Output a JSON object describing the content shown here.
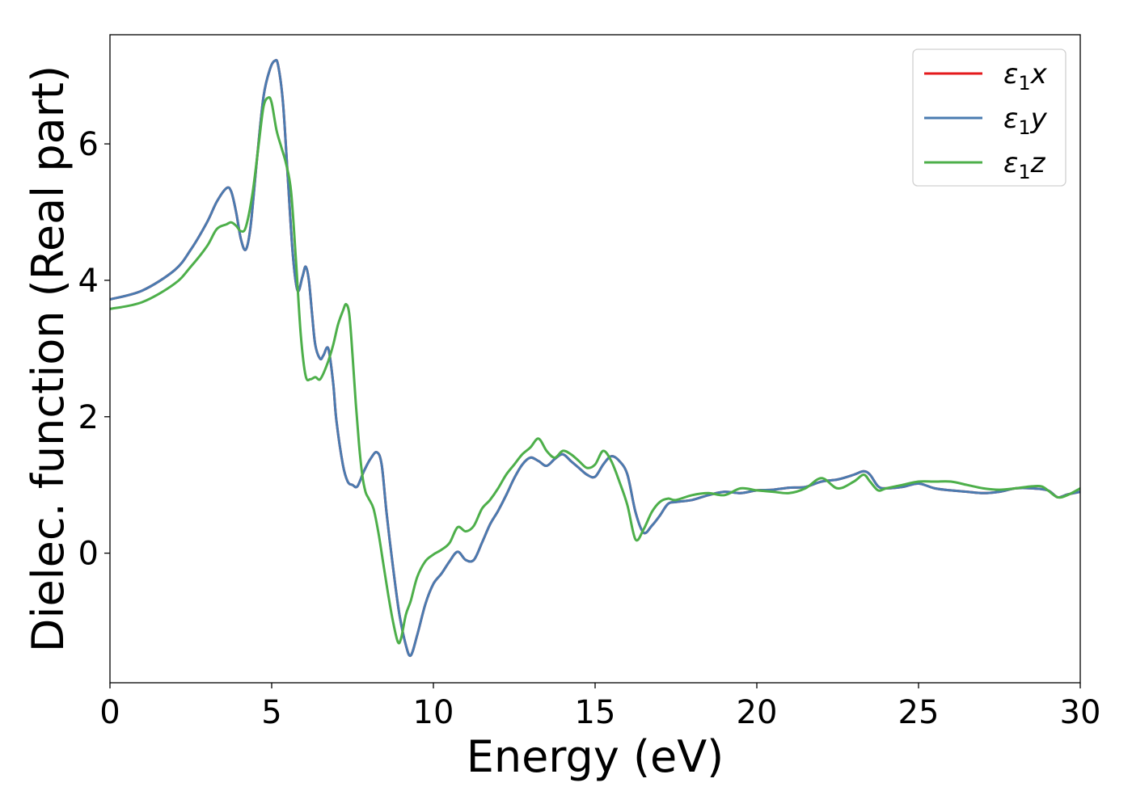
{
  "chart_data": {
    "type": "line",
    "xlabel": "Energy (eV)",
    "ylabel": "Dielec. function (Real part)",
    "xlim": [
      0,
      30
    ],
    "ylim": [
      -1.9,
      7.6
    ],
    "xticks": [
      0,
      5,
      10,
      15,
      20,
      25,
      30
    ],
    "yticks": [
      0,
      2,
      4,
      6
    ],
    "grid": false,
    "legend_position": "top-right",
    "series": [
      {
        "name": "ε1x",
        "label_base": "ε",
        "label_sub": "1",
        "label_tail": "x",
        "color": "#e41a1c",
        "x": [
          0,
          1,
          2,
          2.5,
          3,
          3.3,
          3.6,
          3.75,
          3.9,
          4.05,
          4.2,
          4.35,
          4.55,
          4.75,
          4.95,
          5.1,
          5.2,
          5.35,
          5.5,
          5.65,
          5.8,
          5.95,
          6.05,
          6.15,
          6.25,
          6.35,
          6.5,
          6.6,
          6.75,
          6.9,
          7.0,
          7.2,
          7.35,
          7.5,
          7.65,
          7.85,
          8.05,
          8.25,
          8.4,
          8.55,
          8.75,
          8.95,
          9.15,
          9.3,
          9.5,
          9.75,
          10.0,
          10.25,
          10.5,
          10.75,
          11.0,
          11.25,
          11.5,
          11.75,
          12.0,
          12.25,
          12.5,
          12.75,
          13.0,
          13.25,
          13.5,
          13.75,
          14.0,
          14.25,
          14.5,
          14.75,
          15.0,
          15.25,
          15.5,
          15.75,
          16.0,
          16.25,
          16.5,
          16.75,
          17.0,
          17.25,
          17.5,
          18.0,
          18.5,
          19.0,
          19.5,
          20.0,
          20.5,
          21.0,
          21.5,
          22.0,
          22.5,
          23.0,
          23.3,
          23.5,
          23.75,
          24.0,
          24.5,
          25.0,
          25.5,
          26.0,
          26.5,
          27.0,
          27.5,
          28.0,
          28.5,
          29.0,
          29.3,
          29.6,
          30.0
        ],
        "y": [
          3.72,
          3.85,
          4.15,
          4.45,
          4.85,
          5.15,
          5.35,
          5.3,
          5.0,
          4.6,
          4.45,
          4.8,
          5.8,
          6.7,
          7.1,
          7.22,
          7.15,
          6.6,
          5.5,
          4.4,
          3.85,
          4.05,
          4.2,
          4.0,
          3.5,
          3.05,
          2.85,
          2.9,
          3.0,
          2.5,
          1.95,
          1.3,
          1.05,
          1.0,
          0.98,
          1.2,
          1.38,
          1.48,
          1.3,
          0.6,
          -0.2,
          -0.9,
          -1.35,
          -1.5,
          -1.2,
          -0.75,
          -0.45,
          -0.3,
          -0.12,
          0.02,
          -0.1,
          -0.1,
          0.15,
          0.42,
          0.62,
          0.85,
          1.1,
          1.3,
          1.4,
          1.35,
          1.28,
          1.38,
          1.45,
          1.35,
          1.25,
          1.15,
          1.12,
          1.3,
          1.42,
          1.35,
          1.15,
          0.6,
          0.3,
          0.4,
          0.55,
          0.72,
          0.75,
          0.78,
          0.85,
          0.9,
          0.88,
          0.92,
          0.93,
          0.96,
          0.97,
          1.05,
          1.08,
          1.15,
          1.2,
          1.15,
          0.98,
          0.95,
          0.97,
          1.02,
          0.95,
          0.92,
          0.9,
          0.88,
          0.9,
          0.95,
          0.95,
          0.92,
          0.82,
          0.86,
          0.9
        ]
      },
      {
        "name": "ε1y",
        "label_base": "ε",
        "label_sub": "1",
        "label_tail": "y",
        "color": "#4a7bb0",
        "x": [
          0,
          1,
          2,
          2.5,
          3,
          3.3,
          3.6,
          3.75,
          3.9,
          4.05,
          4.2,
          4.35,
          4.55,
          4.75,
          4.95,
          5.1,
          5.2,
          5.35,
          5.5,
          5.65,
          5.8,
          5.95,
          6.05,
          6.15,
          6.25,
          6.35,
          6.5,
          6.6,
          6.75,
          6.9,
          7.0,
          7.2,
          7.35,
          7.5,
          7.65,
          7.85,
          8.05,
          8.25,
          8.4,
          8.55,
          8.75,
          8.95,
          9.15,
          9.3,
          9.5,
          9.75,
          10.0,
          10.25,
          10.5,
          10.75,
          11.0,
          11.25,
          11.5,
          11.75,
          12.0,
          12.25,
          12.5,
          12.75,
          13.0,
          13.25,
          13.5,
          13.75,
          14.0,
          14.25,
          14.5,
          14.75,
          15.0,
          15.25,
          15.5,
          15.75,
          16.0,
          16.25,
          16.5,
          16.75,
          17.0,
          17.25,
          17.5,
          18.0,
          18.5,
          19.0,
          19.5,
          20.0,
          20.5,
          21.0,
          21.5,
          22.0,
          22.5,
          23.0,
          23.3,
          23.5,
          23.75,
          24.0,
          24.5,
          25.0,
          25.5,
          26.0,
          26.5,
          27.0,
          27.5,
          28.0,
          28.5,
          29.0,
          29.3,
          29.6,
          30.0
        ],
        "y": [
          3.72,
          3.85,
          4.15,
          4.45,
          4.85,
          5.15,
          5.35,
          5.3,
          5.0,
          4.6,
          4.45,
          4.8,
          5.8,
          6.7,
          7.1,
          7.22,
          7.15,
          6.6,
          5.5,
          4.4,
          3.85,
          4.05,
          4.2,
          4.0,
          3.5,
          3.05,
          2.85,
          2.9,
          3.0,
          2.5,
          1.95,
          1.3,
          1.05,
          1.0,
          0.98,
          1.2,
          1.38,
          1.48,
          1.3,
          0.6,
          -0.2,
          -0.9,
          -1.35,
          -1.5,
          -1.2,
          -0.75,
          -0.45,
          -0.3,
          -0.12,
          0.02,
          -0.1,
          -0.1,
          0.15,
          0.42,
          0.62,
          0.85,
          1.1,
          1.3,
          1.4,
          1.35,
          1.28,
          1.38,
          1.45,
          1.35,
          1.25,
          1.15,
          1.12,
          1.3,
          1.42,
          1.35,
          1.15,
          0.6,
          0.3,
          0.4,
          0.55,
          0.72,
          0.75,
          0.78,
          0.85,
          0.9,
          0.88,
          0.92,
          0.93,
          0.96,
          0.97,
          1.05,
          1.08,
          1.15,
          1.2,
          1.15,
          0.98,
          0.95,
          0.97,
          1.02,
          0.95,
          0.92,
          0.9,
          0.88,
          0.9,
          0.95,
          0.95,
          0.92,
          0.82,
          0.86,
          0.9
        ]
      },
      {
        "name": "ε1z",
        "label_base": "ε",
        "label_sub": "1",
        "label_tail": "z",
        "color": "#4daf4a",
        "x": [
          0,
          1,
          2,
          2.5,
          3,
          3.3,
          3.6,
          3.75,
          3.9,
          4.05,
          4.2,
          4.4,
          4.6,
          4.75,
          4.9,
          5.0,
          5.15,
          5.3,
          5.45,
          5.6,
          5.75,
          5.9,
          6.05,
          6.2,
          6.35,
          6.5,
          6.7,
          6.9,
          7.05,
          7.2,
          7.3,
          7.4,
          7.5,
          7.6,
          7.7,
          7.8,
          7.9,
          8.0,
          8.15,
          8.3,
          8.45,
          8.6,
          8.75,
          8.9,
          9.0,
          9.15,
          9.3,
          9.5,
          9.75,
          10.0,
          10.25,
          10.5,
          10.75,
          11.0,
          11.25,
          11.5,
          11.75,
          12.0,
          12.25,
          12.5,
          12.75,
          13.0,
          13.25,
          13.5,
          13.75,
          14.0,
          14.25,
          14.5,
          14.75,
          15.0,
          15.25,
          15.5,
          15.75,
          16.0,
          16.25,
          16.5,
          16.75,
          17.0,
          17.25,
          17.5,
          18.0,
          18.5,
          19.0,
          19.5,
          20.0,
          20.5,
          21.0,
          21.5,
          22.0,
          22.5,
          23.0,
          23.3,
          23.5,
          23.75,
          24.0,
          24.5,
          25.0,
          25.5,
          26.0,
          26.5,
          27.0,
          27.5,
          28.0,
          28.5,
          28.8,
          29.0,
          29.3,
          29.6,
          30.0
        ],
        "y": [
          3.58,
          3.68,
          3.95,
          4.2,
          4.5,
          4.75,
          4.82,
          4.85,
          4.8,
          4.72,
          4.78,
          5.25,
          6.0,
          6.55,
          6.68,
          6.6,
          6.2,
          5.95,
          5.7,
          5.3,
          4.3,
          3.2,
          2.6,
          2.55,
          2.58,
          2.55,
          2.75,
          3.05,
          3.35,
          3.55,
          3.65,
          3.5,
          2.9,
          2.2,
          1.6,
          1.15,
          0.9,
          0.8,
          0.65,
          0.3,
          -0.15,
          -0.6,
          -1.0,
          -1.3,
          -1.25,
          -0.9,
          -0.7,
          -0.35,
          -0.12,
          -0.02,
          0.05,
          0.15,
          0.38,
          0.32,
          0.4,
          0.65,
          0.78,
          0.95,
          1.15,
          1.3,
          1.45,
          1.55,
          1.68,
          1.5,
          1.4,
          1.5,
          1.45,
          1.35,
          1.25,
          1.3,
          1.5,
          1.35,
          1.05,
          0.7,
          0.2,
          0.35,
          0.6,
          0.75,
          0.8,
          0.78,
          0.85,
          0.88,
          0.85,
          0.95,
          0.92,
          0.9,
          0.88,
          0.95,
          1.1,
          0.95,
          1.05,
          1.15,
          1.05,
          0.92,
          0.95,
          1.0,
          1.05,
          1.05,
          1.05,
          1.0,
          0.95,
          0.93,
          0.95,
          0.98,
          0.98,
          0.92,
          0.82,
          0.85,
          0.95
        ]
      }
    ]
  }
}
